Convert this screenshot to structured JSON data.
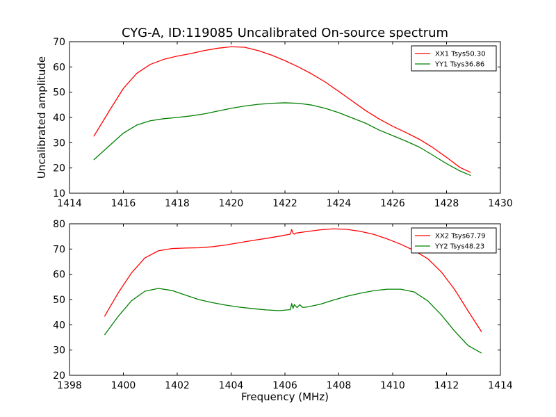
{
  "figure": {
    "title": "CYG-A, ID:119085 Uncalibrated On-source spectrum",
    "ylabel": "Uncalibrated amplitude",
    "xlabel": "Frequency (MHz)"
  },
  "chart_data": [
    {
      "type": "line",
      "title": "CYG-A, ID:119085 Uncalibrated On-source spectrum",
      "xlabel": "",
      "ylabel": "Uncalibrated amplitude",
      "xlim": [
        1414,
        1430
      ],
      "ylim": [
        10,
        70
      ],
      "xticks": [
        1414,
        1416,
        1418,
        1420,
        1422,
        1424,
        1426,
        1428,
        1430
      ],
      "yticks": [
        10,
        20,
        30,
        40,
        50,
        60,
        70
      ],
      "legend_position": "top-right",
      "series": [
        {
          "name": "XX1 Tsys50.30",
          "color": "#ff0000",
          "x": [
            1414.9,
            1415.5,
            1416.0,
            1416.5,
            1417.0,
            1417.5,
            1418.0,
            1418.5,
            1419.0,
            1419.5,
            1420.0,
            1420.5,
            1421.0,
            1421.5,
            1422.0,
            1422.5,
            1423.0,
            1423.5,
            1424.0,
            1424.5,
            1425.0,
            1425.5,
            1426.0,
            1426.5,
            1427.0,
            1427.5,
            1428.0,
            1428.5,
            1428.9
          ],
          "y": [
            32.5,
            43.0,
            51.5,
            57.5,
            61.0,
            63.0,
            64.3,
            65.3,
            66.5,
            67.4,
            68.0,
            67.8,
            66.5,
            64.7,
            62.5,
            60.0,
            57.2,
            54.0,
            50.3,
            46.5,
            42.7,
            39.4,
            36.5,
            34.0,
            31.3,
            28.0,
            24.2,
            20.2,
            18.2
          ]
        },
        {
          "name": "YY1 Tsys36.86",
          "color": "#008000",
          "x": [
            1414.9,
            1415.5,
            1416.0,
            1416.5,
            1417.0,
            1417.5,
            1418.0,
            1418.5,
            1419.0,
            1419.5,
            1420.0,
            1420.5,
            1421.0,
            1421.5,
            1422.0,
            1422.5,
            1423.0,
            1423.5,
            1424.0,
            1424.5,
            1425.0,
            1425.5,
            1426.0,
            1426.5,
            1427.0,
            1427.5,
            1428.0,
            1428.5,
            1428.9
          ],
          "y": [
            23.2,
            29.0,
            33.8,
            37.0,
            38.7,
            39.5,
            40.0,
            40.6,
            41.4,
            42.5,
            43.6,
            44.5,
            45.2,
            45.6,
            45.8,
            45.6,
            44.9,
            43.6,
            41.9,
            39.8,
            37.7,
            35.0,
            32.8,
            30.6,
            28.2,
            25.0,
            21.7,
            18.8,
            17.0
          ]
        }
      ]
    },
    {
      "type": "line",
      "title": "",
      "xlabel": "Frequency (MHz)",
      "ylabel": "",
      "xlim": [
        1398,
        1414
      ],
      "ylim": [
        20,
        80
      ],
      "xticks": [
        1398,
        1400,
        1402,
        1404,
        1406,
        1408,
        1410,
        1412,
        1414
      ],
      "yticks": [
        20,
        30,
        40,
        50,
        60,
        70,
        80
      ],
      "legend_position": "top-right",
      "series": [
        {
          "name": "XX2 Tsys67.79",
          "color": "#ff0000",
          "x": [
            1399.3,
            1399.8,
            1400.3,
            1400.8,
            1401.3,
            1401.8,
            1402.3,
            1402.8,
            1403.3,
            1403.8,
            1404.3,
            1404.8,
            1405.3,
            1405.8,
            1406.2,
            1406.25,
            1406.3,
            1406.35,
            1406.4,
            1406.8,
            1407.3,
            1407.8,
            1408.3,
            1408.8,
            1409.3,
            1409.8,
            1410.3,
            1410.8,
            1411.3,
            1411.8,
            1412.3,
            1412.8,
            1413.3
          ],
          "y": [
            43.3,
            52.5,
            60.5,
            66.5,
            69.3,
            70.2,
            70.4,
            70.5,
            70.9,
            71.6,
            72.5,
            73.4,
            74.2,
            75.1,
            75.9,
            77.7,
            76.3,
            75.9,
            76.3,
            76.9,
            77.6,
            78.0,
            77.8,
            77.0,
            75.8,
            74.0,
            71.9,
            69.4,
            66.2,
            61.0,
            54.0,
            45.5,
            37.2
          ]
        },
        {
          "name": "YY2 Tsys48.23",
          "color": "#008000",
          "x": [
            1399.3,
            1399.8,
            1400.3,
            1400.8,
            1401.3,
            1401.8,
            1402.3,
            1402.8,
            1403.3,
            1403.8,
            1404.3,
            1404.8,
            1405.3,
            1405.8,
            1406.2,
            1406.25,
            1406.3,
            1406.35,
            1406.45,
            1406.55,
            1406.65,
            1406.8,
            1407.3,
            1407.8,
            1408.3,
            1408.8,
            1409.3,
            1409.8,
            1410.3,
            1410.8,
            1411.3,
            1411.8,
            1412.3,
            1412.8,
            1413.3
          ],
          "y": [
            36.0,
            43.2,
            49.5,
            53.3,
            54.4,
            53.6,
            51.8,
            50.0,
            48.8,
            47.8,
            47.0,
            46.4,
            45.9,
            45.6,
            46.0,
            48.4,
            46.5,
            48.0,
            46.8,
            48.0,
            46.9,
            47.0,
            48.1,
            49.8,
            51.3,
            52.5,
            53.5,
            54.1,
            54.1,
            53.0,
            49.5,
            44.0,
            37.5,
            31.8,
            28.8
          ]
        }
      ]
    }
  ]
}
